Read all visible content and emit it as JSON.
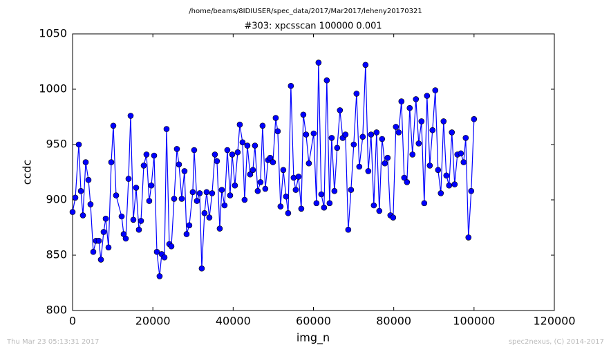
{
  "chart_data": {
    "type": "line",
    "suptitle": "/home/beams/8IDIUSER/spec_data/2017/Mar2017/leheny20170321",
    "title": "#303: xpcsscan 100000 0.001",
    "xlabel": "img_n",
    "ylabel": "ccdc",
    "footer_left": "Thu Mar 23 05:13:31 2017",
    "footer_right": "spec2nexus, (C) 2014-2017",
    "x": [
      0,
      690,
      1550,
      2070,
      2580,
      3270,
      3960,
      4470,
      5160,
      5850,
      6540,
      7060,
      7740,
      8260,
      8950,
      9640,
      10150,
      10840,
      12220,
      12740,
      13250,
      13940,
      14460,
      15140,
      15830,
      16520,
      17040,
      17730,
      18410,
      19100,
      19620,
      20310,
      21000,
      21680,
      22200,
      22890,
      23410,
      24090,
      24610,
      25300,
      25990,
      26500,
      27190,
      27880,
      28400,
      29080,
      29940,
      30290,
      30980,
      31670,
      32180,
      32870,
      33390,
      34070,
      34760,
      35450,
      35970,
      36660,
      37170,
      37860,
      38550,
      39240,
      39760,
      40440,
      41130,
      41650,
      42340,
      42850,
      43540,
      44230,
      44920,
      45430,
      46120,
      46810,
      47330,
      48010,
      48700,
      49220,
      49910,
      50600,
      51110,
      51800,
      52490,
      53180,
      53700,
      54380,
      55070,
      55590,
      56280,
      56970,
      57480,
      58170,
      58860,
      60060,
      60750,
      61270,
      61960,
      62640,
      63330,
      64020,
      64540,
      65230,
      65910,
      66600,
      67290,
      67980,
      68670,
      69360,
      70040,
      70730,
      71420,
      72280,
      72970,
      73660,
      74350,
      75040,
      75720,
      76410,
      77100,
      77790,
      78480,
      79170,
      79850,
      80540,
      81230,
      81920,
      82610,
      83300,
      83980,
      84670,
      85530,
      86220,
      86910,
      87600,
      88290,
      88980,
      89660,
      90350,
      91040,
      91730,
      92420,
      93110,
      93790,
      94480,
      95170,
      95860,
      96720,
      97410,
      97930,
      98610,
      99300,
      100000
    ],
    "series": [
      {
        "name": "ccdc",
        "color": "#0000ff",
        "values": [
          889,
          902,
          950,
          908,
          886,
          934,
          918,
          896,
          853,
          863,
          863,
          846,
          871,
          883,
          857,
          934,
          967,
          904,
          885,
          869,
          865,
          919,
          976,
          882,
          911,
          873,
          881,
          931,
          941,
          899,
          913,
          940,
          853,
          831,
          851,
          848,
          964,
          860,
          858,
          901,
          946,
          932,
          901,
          926,
          869,
          877,
          907,
          945,
          899,
          906,
          838,
          888,
          907,
          884,
          906,
          941,
          935,
          874,
          909,
          895,
          945,
          904,
          941,
          913,
          943,
          968,
          952,
          900,
          949,
          923,
          927,
          949,
          908,
          916,
          967,
          910,
          936,
          938,
          934,
          974,
          962,
          894,
          927,
          903,
          888,
          1003,
          920,
          909,
          921,
          892,
          977,
          959,
          933,
          960,
          897,
          1024,
          905,
          893,
          1008,
          897,
          956,
          908,
          947,
          981,
          956,
          959,
          873,
          909,
          950,
          996,
          930,
          957,
          1022,
          926,
          959,
          895,
          961,
          890,
          955,
          933,
          938,
          886,
          884,
          966,
          961,
          989,
          920,
          916,
          983,
          941,
          991,
          951,
          971,
          897,
          994,
          931,
          963,
          999,
          927,
          906,
          971,
          922,
          913,
          961,
          914,
          941,
          942,
          934,
          956,
          866,
          908,
          973
        ]
      }
    ],
    "xlim": [
      0,
      120000
    ],
    "xticks": [
      0,
      20000,
      40000,
      60000,
      80000,
      100000,
      120000
    ],
    "ylim": [
      800,
      1050
    ],
    "yticks": [
      800,
      850,
      900,
      950,
      1000,
      1050
    ]
  }
}
